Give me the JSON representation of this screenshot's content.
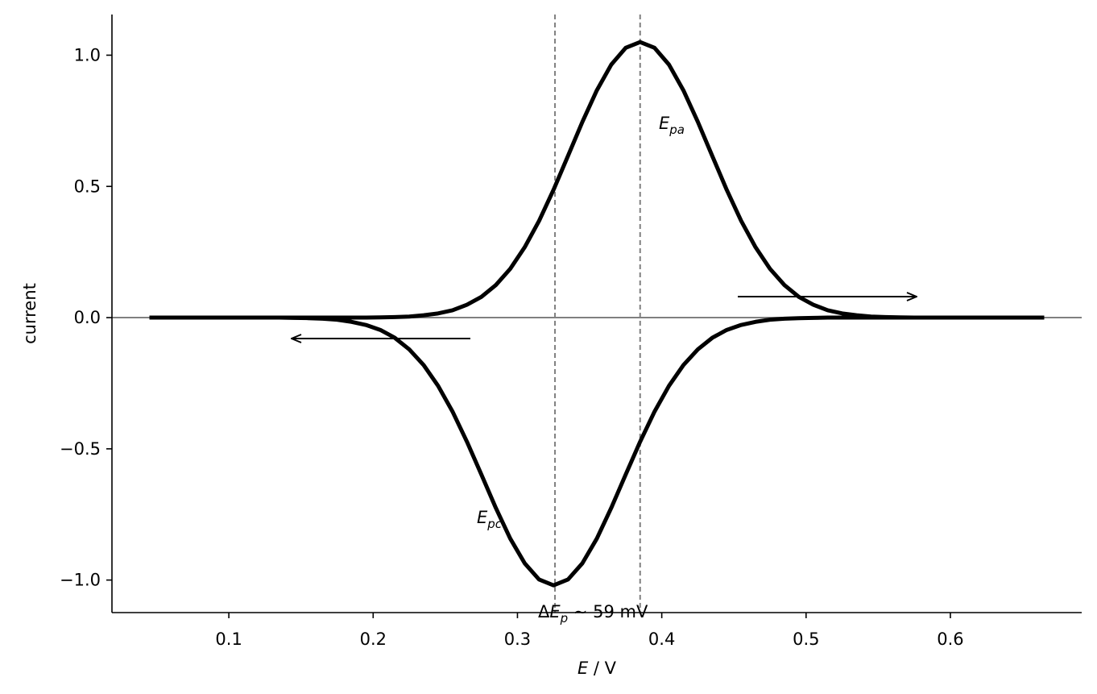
{
  "chart_data": {
    "type": "line",
    "xlabel": {
      "text": "E",
      "suffix": " / V"
    },
    "ylabel": "current",
    "x": [
      0.045,
      0.055,
      0.065,
      0.075,
      0.085,
      0.095,
      0.105,
      0.115,
      0.125,
      0.135,
      0.145,
      0.155,
      0.165,
      0.175,
      0.185,
      0.195,
      0.205,
      0.215,
      0.225,
      0.235,
      0.245,
      0.255,
      0.265,
      0.275,
      0.285,
      0.295,
      0.305,
      0.315,
      0.325,
      0.335,
      0.345,
      0.355,
      0.365,
      0.375,
      0.385,
      0.395,
      0.405,
      0.415,
      0.425,
      0.435,
      0.445,
      0.455,
      0.465,
      0.475,
      0.485,
      0.495,
      0.505,
      0.515,
      0.525,
      0.535,
      0.545,
      0.555,
      0.565,
      0.575,
      0.585,
      0.595,
      0.605,
      0.615,
      0.625,
      0.635,
      0.645,
      0.655,
      0.665
    ],
    "series": [
      {
        "color": "#000000",
        "values": [
          0,
          0,
          0,
          0,
          0,
          0,
          0,
          0,
          0,
          0,
          0,
          0,
          0,
          0,
          0,
          0,
          0.001,
          0.002,
          0.004,
          0.009,
          0.016,
          0.028,
          0.049,
          0.079,
          0.124,
          0.186,
          0.268,
          0.369,
          0.487,
          0.616,
          0.746,
          0.866,
          0.964,
          1.028,
          1.05,
          1.028,
          0.964,
          0.866,
          0.746,
          0.616,
          0.487,
          0.369,
          0.268,
          0.186,
          0.124,
          0.079,
          0.049,
          0.028,
          0.016,
          0.009,
          0.004,
          0.002,
          0.001,
          0,
          0,
          0,
          0,
          0,
          0,
          0,
          0,
          0,
          0
        ]
      },
      {
        "color": "#000000",
        "values": [
          0,
          0,
          0,
          0,
          0,
          0,
          0,
          0,
          0,
          0,
          -0.001,
          -0.002,
          -0.004,
          -0.008,
          -0.016,
          -0.028,
          -0.047,
          -0.077,
          -0.121,
          -0.181,
          -0.26,
          -0.358,
          -0.473,
          -0.598,
          -0.725,
          -0.842,
          -0.936,
          -0.998,
          -1.02,
          -0.998,
          -0.936,
          -0.842,
          -0.725,
          -0.598,
          -0.473,
          -0.358,
          -0.26,
          -0.181,
          -0.121,
          -0.077,
          -0.047,
          -0.028,
          -0.016,
          -0.008,
          -0.004,
          -0.002,
          -0.001,
          0,
          0,
          0,
          0,
          0,
          0,
          0,
          0,
          0,
          0,
          0,
          0,
          0,
          0,
          0,
          0
        ]
      }
    ],
    "vlines": [
      0.326,
      0.385
    ],
    "hline": 0,
    "ref_color": "#808080",
    "annotations": [
      {
        "text": "E",
        "sub": "pa"
      },
      {
        "text": "E",
        "sub": "pc"
      },
      {
        "prefix": "Δ",
        "text": "E",
        "sub": "p",
        "suffix": " ~ 59 mV"
      }
    ],
    "xlim": [
      0.019,
      0.691
    ],
    "ylim": [
      -1.124,
      1.155
    ],
    "xticks": [
      0.1,
      0.2,
      0.3,
      0.4,
      0.5,
      0.6
    ],
    "yticks": [
      {
        "value": -1,
        "label": "−1.0"
      },
      {
        "value": -0.5,
        "label": "−0.5"
      },
      {
        "value": 0,
        "label": "0.0"
      },
      {
        "value": 0.5,
        "label": "0.5"
      },
      {
        "value": 1,
        "label": "1.0"
      }
    ]
  }
}
